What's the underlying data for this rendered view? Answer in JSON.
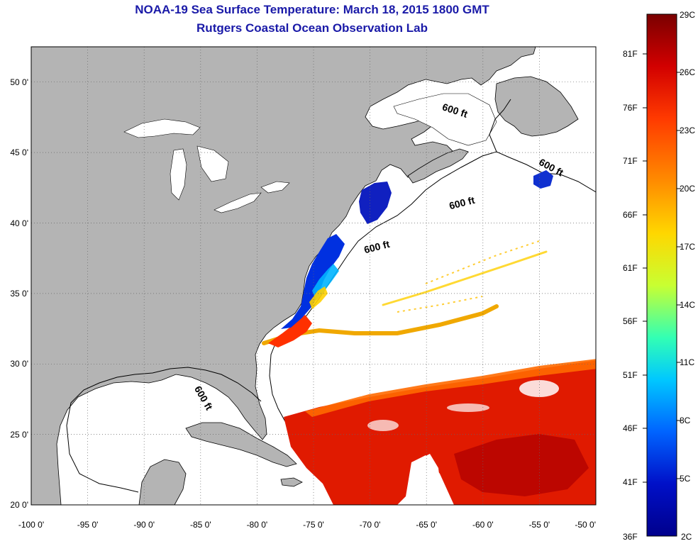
{
  "title": {
    "line1": "NOAA-19 Sea Surface Temperature:  March 18, 2015 1800 GMT",
    "line2": "Rutgers Coastal Ocean Observation Lab"
  },
  "map": {
    "lon_range": [
      -100,
      -50
    ],
    "lat_range": [
      20,
      52.5
    ],
    "lon_ticks": [
      "-100 0'",
      "-95 0'",
      "-90 0'",
      "-85 0'",
      "-80 0'",
      "-75 0'",
      "-70 0'",
      "-65 0'",
      "-60 0'",
      "-55 0'",
      "-50 0'"
    ],
    "lat_ticks": [
      "50 0'",
      "45 0'",
      "40 0'",
      "35 0'",
      "30 0'",
      "25 0'",
      "20 0'"
    ],
    "depth_label": "600 ft",
    "land_color": "#b4b4b4",
    "water_color": "#ffffff",
    "grid": "dotted"
  },
  "colorbar": {
    "celsius": [
      "29C",
      "26C",
      "23C",
      "20C",
      "17C",
      "14C",
      "11C",
      "8C",
      "5C",
      "2C"
    ],
    "fahrenheit": [
      "81F",
      "76F",
      "71F",
      "66F",
      "61F",
      "56F",
      "51F",
      "46F",
      "41F",
      "36F"
    ],
    "colors": [
      "#7a0000",
      "#d20000",
      "#ff3a00",
      "#ff8c00",
      "#ffd700",
      "#c8ff32",
      "#32ffb4",
      "#00c8ff",
      "#0064ff",
      "#0010c8",
      "#00008c"
    ]
  }
}
